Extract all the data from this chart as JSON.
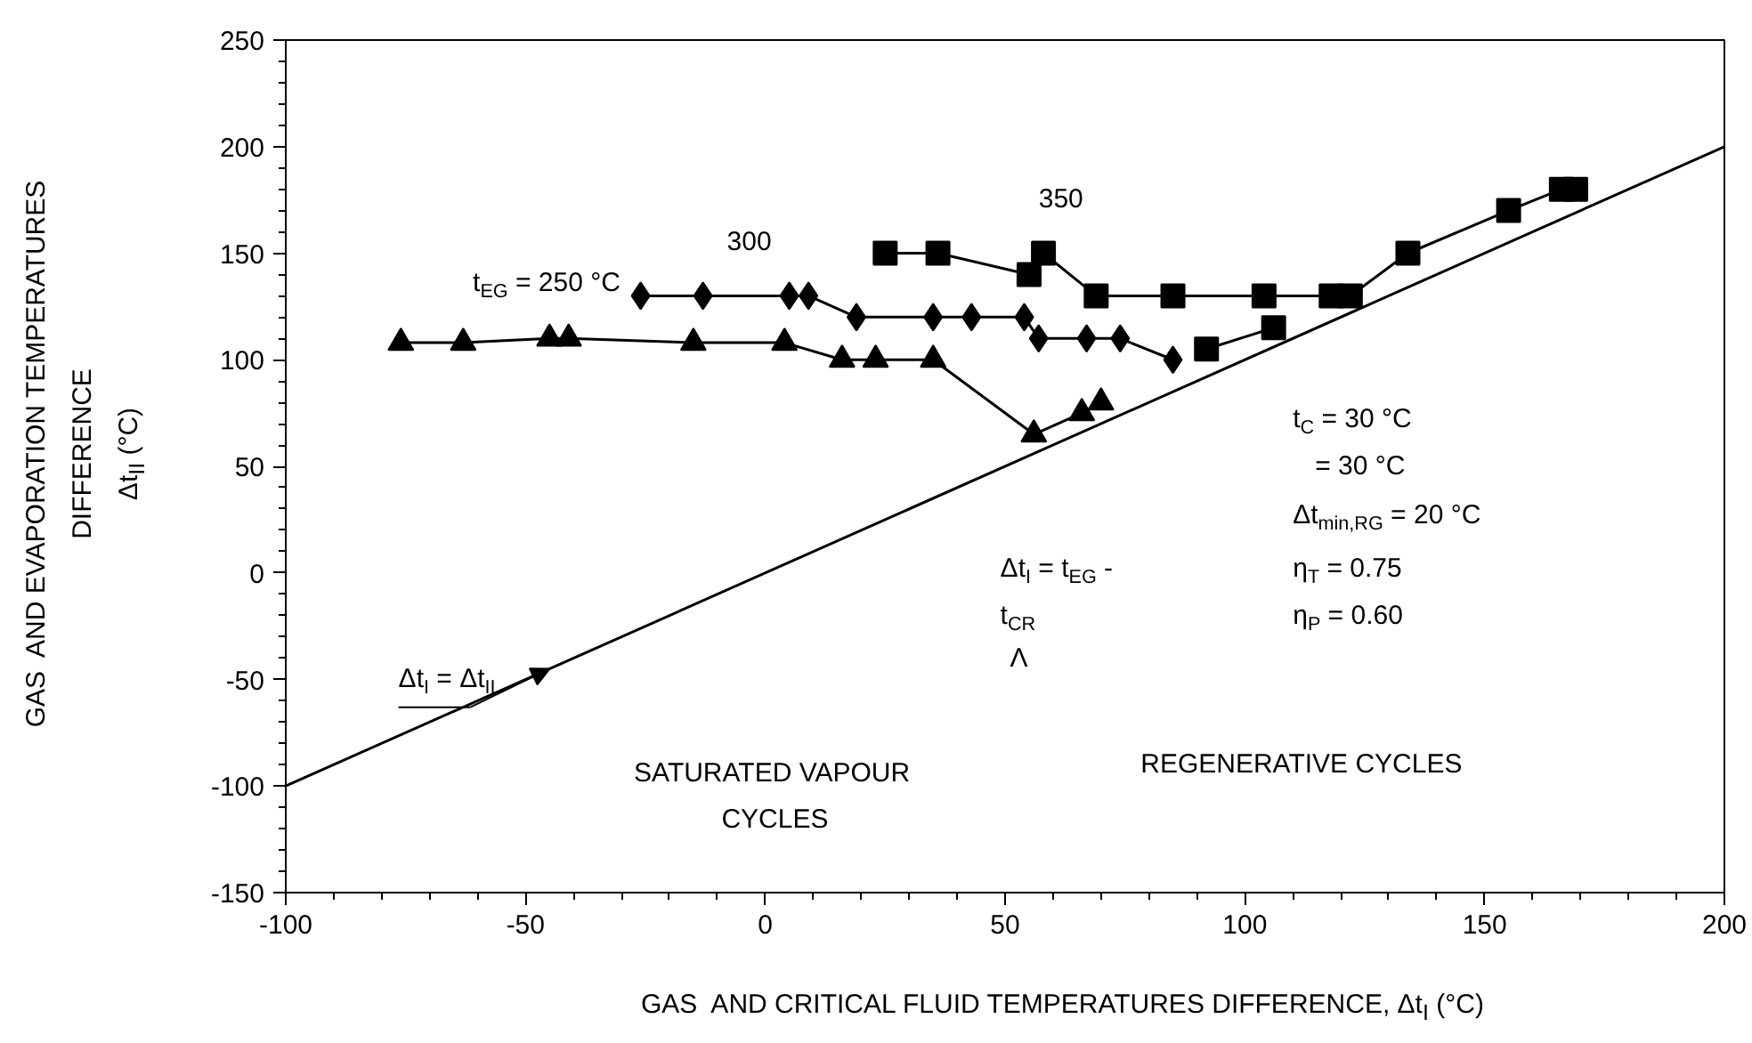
{
  "chart_data": {
    "type": "line",
    "xlabel": "GAS  AND CRITICAL FLUID TEMPERATURES DIFFERENCE, Δt$_{I}$ (°C)",
    "ylabel": "GAS  AND EVAPORATION TEMPERATURES\nDIFFERENCE\nΔt$_{II}$ (°C)",
    "xlim": [
      -100,
      200
    ],
    "xticks": [
      -100,
      -50,
      0,
      50,
      100,
      150,
      200
    ],
    "ylim": [
      -150,
      250
    ],
    "yticks": [
      -150,
      -100,
      -50,
      0,
      50,
      100,
      150,
      200,
      250
    ],
    "grid": false,
    "series": [
      {
        "color": "#000000",
        "marker": "triangle",
        "x": [
          -76,
          -63,
          -45,
          -41,
          -15,
          4,
          16,
          23,
          35,
          56,
          66,
          70
        ],
        "values": [
          108,
          108,
          110,
          110,
          108,
          108,
          100,
          100,
          100,
          65,
          75,
          80
        ]
      },
      {
        "color": "#000000",
        "marker": "diamond",
        "x": [
          -26,
          -13,
          5,
          9,
          19,
          35,
          43,
          54,
          57,
          67,
          74,
          85
        ],
        "values": [
          130,
          130,
          130,
          130,
          120,
          120,
          120,
          120,
          110,
          110,
          110,
          100
        ]
      },
      {
        "color": "#000000",
        "marker": "square",
        "x": [
          25,
          36,
          55,
          58,
          69,
          85,
          104,
          118,
          122,
          134,
          155,
          166,
          169
        ],
        "values": [
          150,
          150,
          140,
          150,
          130,
          130,
          130,
          130,
          130,
          150,
          170,
          180,
          180
        ]
      },
      {
        "color": "#000000",
        "marker": "square",
        "x": [
          92,
          106
        ],
        "values": [
          105,
          115
        ]
      },
      {
        "color": "#000000",
        "marker": "none",
        "x": [
          -100,
          200
        ],
        "values": [
          -100,
          200
        ]
      }
    ],
    "annotations": [
      "350",
      "300",
      "t$_{EG}$ = 250 °C",
      "t$_{C}$ = 30 °C",
      "   = 30 °C",
      "Δt$_{min,RG}$ = 20 °C",
      "η$_{T}$ = 0.75",
      "η$_{P}$ = 0.60",
      "Δt$_{I}$ = t$_{EG}$ -",
      "t$_{CR}$",
      "Λ",
      "SATURATED VAPOUR\nCYCLES",
      "REGENERATIVE CYCLES",
      {
        "text": "Δt$_{I}$ = Δt$_{II}$",
        "x": -45,
        "y": -45
      }
    ]
  }
}
